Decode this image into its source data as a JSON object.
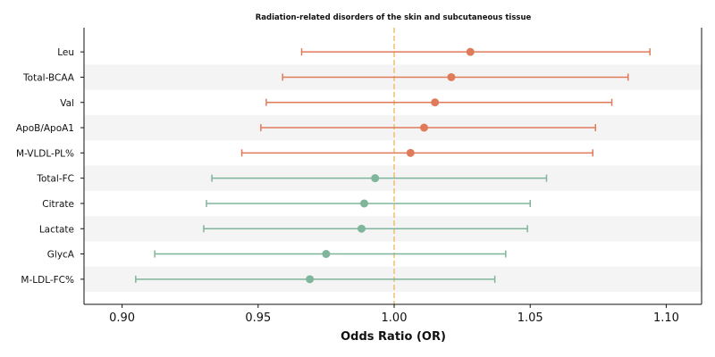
{
  "chart_data": {
    "type": "forest",
    "title": "Radiation-related disorders of the skin and subcutaneous tissue",
    "xlabel": "Odds Ratio (OR)",
    "xlim": [
      0.886,
      1.113
    ],
    "xticks": [
      0.9,
      0.95,
      1.0,
      1.05,
      1.1
    ],
    "xtick_labels": [
      "0.90",
      "0.95",
      "1.00",
      "1.05",
      "1.10"
    ],
    "reference_line": 1.0,
    "grid": false,
    "alternating_row_shading": true,
    "colors": {
      "positive": "#e07b5a",
      "negative": "#7fb59a",
      "reference_line": "#f0c27a",
      "row_shade": "#f4f4f4"
    },
    "rows": [
      {
        "label": "Leu",
        "or": 1.028,
        "lower": 0.966,
        "upper": 1.094
      },
      {
        "label": "Total-BCAA",
        "or": 1.021,
        "lower": 0.959,
        "upper": 1.086
      },
      {
        "label": "Val",
        "or": 1.015,
        "lower": 0.953,
        "upper": 1.08
      },
      {
        "label": "ApoB/ApoA1",
        "or": 1.011,
        "lower": 0.951,
        "upper": 1.074
      },
      {
        "label": "M-VLDL-PL%",
        "or": 1.006,
        "lower": 0.944,
        "upper": 1.073
      },
      {
        "label": "Total-FC",
        "or": 0.993,
        "lower": 0.933,
        "upper": 1.056
      },
      {
        "label": "Citrate",
        "or": 0.989,
        "lower": 0.931,
        "upper": 1.05
      },
      {
        "label": "Lactate",
        "or": 0.988,
        "lower": 0.93,
        "upper": 1.049
      },
      {
        "label": "GlycA",
        "or": 0.975,
        "lower": 0.912,
        "upper": 1.041
      },
      {
        "label": "M-LDL-FC%",
        "or": 0.969,
        "lower": 0.905,
        "upper": 1.037
      }
    ]
  }
}
